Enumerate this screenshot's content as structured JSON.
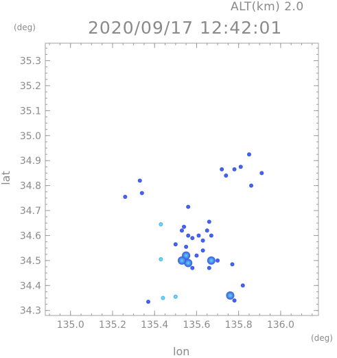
{
  "header": {
    "alt_label": "ALT(km)  2.0",
    "timestamp": "2020/09/17 12:42:01"
  },
  "units": {
    "y_unit": "(deg)",
    "x_unit": "(deg)"
  },
  "chart_data": {
    "type": "heatmap",
    "title": "2020/09/17 12:42:01",
    "xlabel": "lon",
    "ylabel": "lat",
    "xlim": [
      134.88,
      136.18
    ],
    "ylim": [
      34.28,
      35.37
    ],
    "x_ticks": [
      135.0,
      135.2,
      135.4,
      135.6,
      135.8,
      136.0
    ],
    "x_tick_labels": [
      "135.0",
      "135.2",
      "135.4",
      "135.6",
      "135.8",
      "136.0"
    ],
    "y_ticks": [
      34.3,
      34.4,
      34.5,
      34.6,
      34.7,
      34.8,
      34.9,
      35.0,
      35.1,
      35.2,
      35.3
    ],
    "y_tick_labels": [
      "34.3",
      "34.4",
      "34.5",
      "34.6",
      "34.7",
      "34.8",
      "34.9",
      "35.0",
      "35.1",
      "35.2",
      "35.3"
    ],
    "grid": false,
    "colors": {
      "low": "#3a55e8",
      "mid": "#4f8cf2",
      "high": "#5fd9ee",
      "axis": "#9a9a9a"
    },
    "echoes": [
      {
        "lon": 135.85,
        "lat": 34.925,
        "level": "low"
      },
      {
        "lon": 135.81,
        "lat": 34.875,
        "level": "low"
      },
      {
        "lon": 135.78,
        "lat": 34.865,
        "level": "low"
      },
      {
        "lon": 135.91,
        "lat": 34.85,
        "level": "low"
      },
      {
        "lon": 135.72,
        "lat": 34.865,
        "level": "low"
      },
      {
        "lon": 135.74,
        "lat": 34.84,
        "level": "low"
      },
      {
        "lon": 135.86,
        "lat": 34.8,
        "level": "low"
      },
      {
        "lon": 135.26,
        "lat": 34.755,
        "level": "low"
      },
      {
        "lon": 135.34,
        "lat": 34.77,
        "level": "low"
      },
      {
        "lon": 135.33,
        "lat": 34.82,
        "level": "low"
      },
      {
        "lon": 135.56,
        "lat": 34.715,
        "level": "low"
      },
      {
        "lon": 135.54,
        "lat": 34.635,
        "level": "low"
      },
      {
        "lon": 135.56,
        "lat": 34.6,
        "level": "low"
      },
      {
        "lon": 135.53,
        "lat": 34.62,
        "level": "low"
      },
      {
        "lon": 135.5,
        "lat": 34.565,
        "level": "low"
      },
      {
        "lon": 135.55,
        "lat": 34.555,
        "level": "low"
      },
      {
        "lon": 135.58,
        "lat": 34.59,
        "level": "low"
      },
      {
        "lon": 135.61,
        "lat": 34.6,
        "level": "low"
      },
      {
        "lon": 135.63,
        "lat": 34.58,
        "level": "low"
      },
      {
        "lon": 135.66,
        "lat": 34.655,
        "level": "low"
      },
      {
        "lon": 135.65,
        "lat": 34.62,
        "level": "low"
      },
      {
        "lon": 135.67,
        "lat": 34.6,
        "level": "low"
      },
      {
        "lon": 135.63,
        "lat": 34.54,
        "level": "low"
      },
      {
        "lon": 135.6,
        "lat": 34.52,
        "level": "low"
      },
      {
        "lon": 135.55,
        "lat": 34.52,
        "level": "mid"
      },
      {
        "lon": 135.56,
        "lat": 34.49,
        "level": "mid"
      },
      {
        "lon": 135.53,
        "lat": 34.5,
        "level": "mid"
      },
      {
        "lon": 135.58,
        "lat": 34.47,
        "level": "low"
      },
      {
        "lon": 135.66,
        "lat": 34.47,
        "level": "low"
      },
      {
        "lon": 135.67,
        "lat": 34.5,
        "level": "mid"
      },
      {
        "lon": 135.7,
        "lat": 34.5,
        "level": "low"
      },
      {
        "lon": 135.77,
        "lat": 34.485,
        "level": "low"
      },
      {
        "lon": 135.43,
        "lat": 34.505,
        "level": "high"
      },
      {
        "lon": 135.43,
        "lat": 34.645,
        "level": "high"
      },
      {
        "lon": 135.82,
        "lat": 34.4,
        "level": "low"
      },
      {
        "lon": 135.76,
        "lat": 34.36,
        "level": "mid"
      },
      {
        "lon": 135.78,
        "lat": 34.34,
        "level": "low"
      },
      {
        "lon": 135.37,
        "lat": 34.335,
        "level": "low"
      },
      {
        "lon": 135.44,
        "lat": 34.35,
        "level": "high"
      },
      {
        "lon": 135.5,
        "lat": 34.355,
        "level": "high"
      }
    ]
  }
}
